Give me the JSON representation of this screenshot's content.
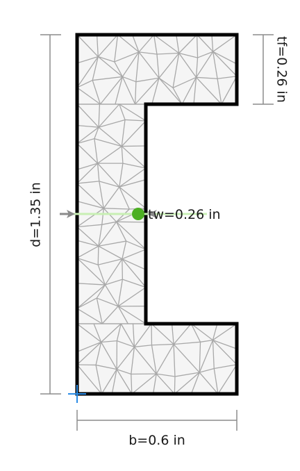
{
  "section": {
    "shape": "channel",
    "colors": {
      "outline": "#000000",
      "mesh": "#a8a8a8",
      "fill": "#f5f5f5",
      "dimension": "#8c8c8c",
      "marker": "#4caf22",
      "arrow": "#c8f0b4",
      "origin": "#2b8ce6"
    }
  },
  "dimensions": {
    "depth": "d=1.35 in",
    "width": "b=0.6 in",
    "flange_thickness": "tf=0.26 in",
    "web_thickness": "tw=0.26 in"
  }
}
